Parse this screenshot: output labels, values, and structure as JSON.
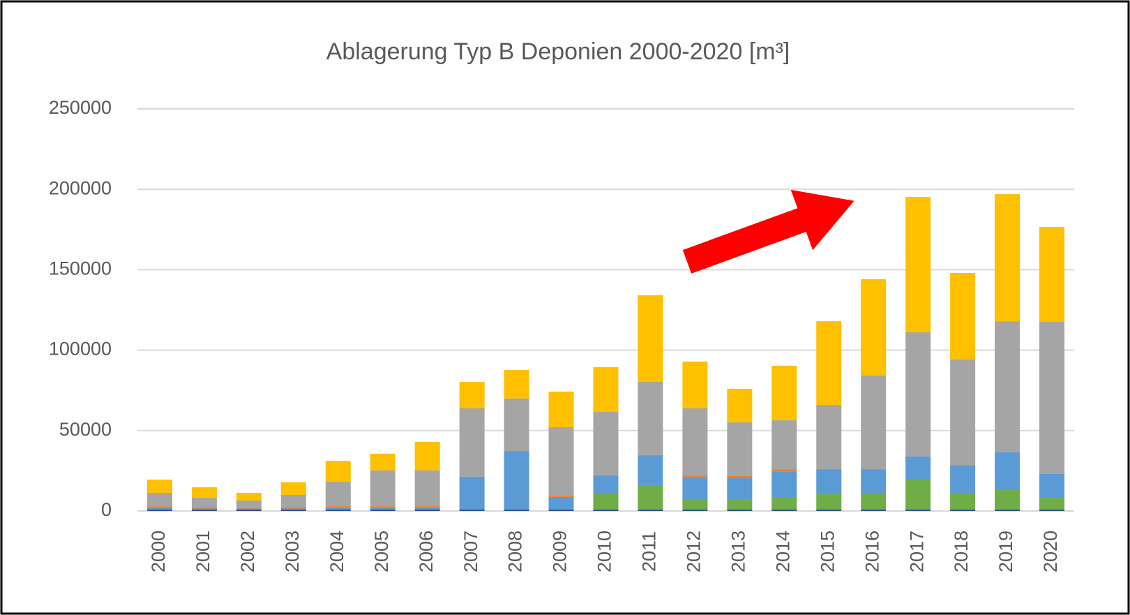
{
  "chart_data": {
    "type": "stacked_bar",
    "title": "Ablagerung Typ B Deponien 2000-2020 [m³]",
    "categories": [
      "2000",
      "2001",
      "2002",
      "2003",
      "2004",
      "2005",
      "2006",
      "2007",
      "2008",
      "2009",
      "2010",
      "2011",
      "2012",
      "2013",
      "2014",
      "2015",
      "2016",
      "2017",
      "2018",
      "2019",
      "2020"
    ],
    "series": [
      {
        "color": "#2f5597",
        "values": [
          1000,
          1000,
          1000,
          1000,
          1000,
          1000,
          1000,
          1000,
          1000,
          1000,
          1000,
          1000,
          1000,
          1000,
          1000,
          1000,
          1000,
          1000,
          1000,
          1000,
          1000
        ]
      },
      {
        "color": "#70ad47",
        "values": [
          0,
          0,
          0,
          0,
          0,
          0,
          0,
          0,
          0,
          0,
          10300,
          15100,
          5900,
          5900,
          7700,
          9400,
          10300,
          18500,
          10300,
          12000,
          7200
        ]
      },
      {
        "color": "#5b9bd5",
        "values": [
          1000,
          500,
          500,
          500,
          1000,
          1000,
          1000,
          20300,
          36300,
          7700,
          10800,
          18600,
          13900,
          13500,
          16000,
          15600,
          14700,
          14400,
          17300,
          23500,
          14800
        ]
      },
      {
        "color": "#ed7d31",
        "values": [
          1000,
          1000,
          500,
          1000,
          1000,
          1000,
          1000,
          0,
          0,
          800,
          0,
          0,
          1300,
          1300,
          1300,
          0,
          0,
          0,
          0,
          0,
          0
        ]
      },
      {
        "color": "#a5a5a5",
        "values": [
          8300,
          5700,
          4500,
          7500,
          15200,
          22200,
          22200,
          42500,
          32600,
          42600,
          39500,
          45600,
          41700,
          33400,
          30400,
          40000,
          58200,
          77200,
          65600,
          81500,
          94600
        ]
      },
      {
        "color": "#ffc000",
        "values": [
          8200,
          6600,
          4800,
          7800,
          13000,
          10400,
          17800,
          16500,
          17800,
          22100,
          27800,
          53800,
          29100,
          20900,
          33900,
          52000,
          59900,
          84200,
          53800,
          79000,
          59000
        ]
      }
    ],
    "ylim": [
      0,
      250000
    ],
    "yticks": [
      0,
      50000,
      100000,
      150000,
      200000,
      250000
    ],
    "grid": true
  }
}
